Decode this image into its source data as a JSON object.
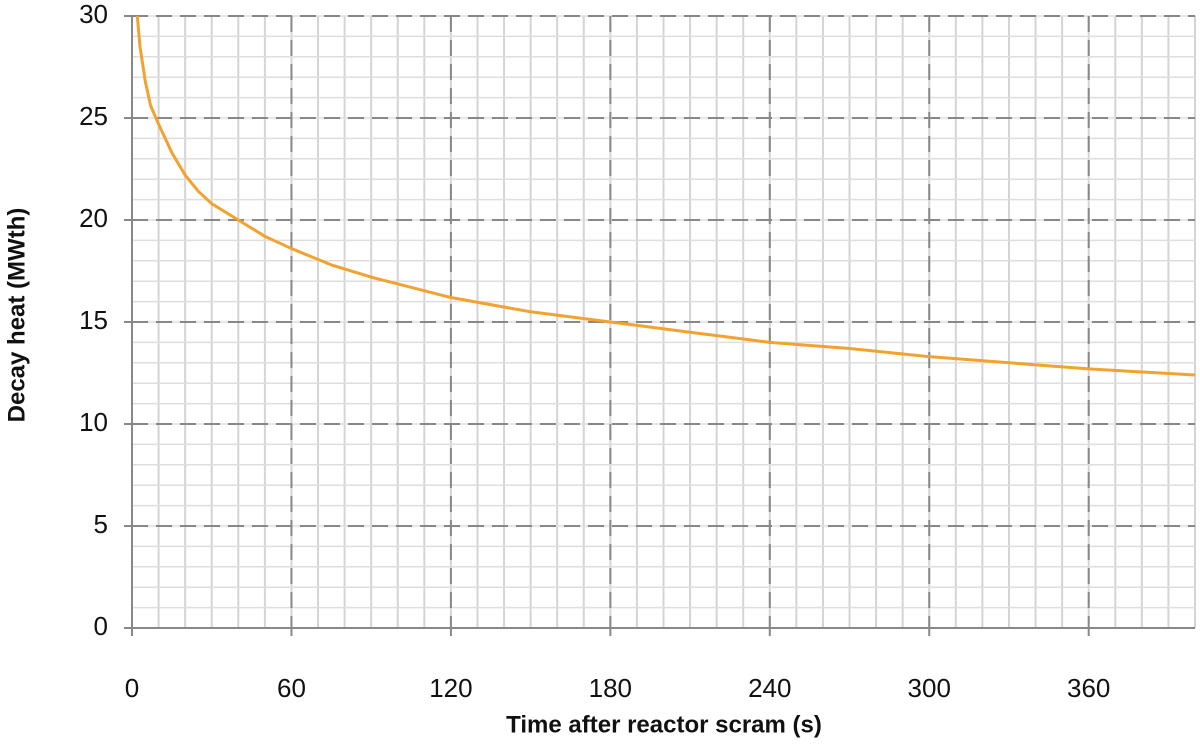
{
  "chart_data": {
    "type": "line",
    "x_label": "Time after reactor scram (s)",
    "y_label": "Decay heat (MWth)",
    "x": [
      2,
      3,
      5,
      7,
      10,
      15,
      20,
      25,
      30,
      40,
      50,
      60,
      75,
      90,
      105,
      120,
      150,
      180,
      210,
      240,
      270,
      300,
      330,
      360,
      400
    ],
    "series": [
      {
        "name": "Decay heat",
        "color": "#f2a22e",
        "values": [
          30,
          28.5,
          26.8,
          25.6,
          24.7,
          23.3,
          22.2,
          21.4,
          20.8,
          20.0,
          19.2,
          18.6,
          17.8,
          17.2,
          16.7,
          16.2,
          15.5,
          15.0,
          14.5,
          14.0,
          13.7,
          13.3,
          13.0,
          12.7,
          12.4
        ]
      }
    ],
    "xlim": [
      0,
      400
    ],
    "ylim": [
      0,
      30
    ],
    "xticks": [
      0,
      60,
      120,
      180,
      240,
      300,
      360
    ],
    "yticks": [
      0,
      5,
      10,
      15,
      20,
      25,
      30
    ],
    "grid": true,
    "minor_grid": {
      "x": 10,
      "y": 1
    }
  }
}
